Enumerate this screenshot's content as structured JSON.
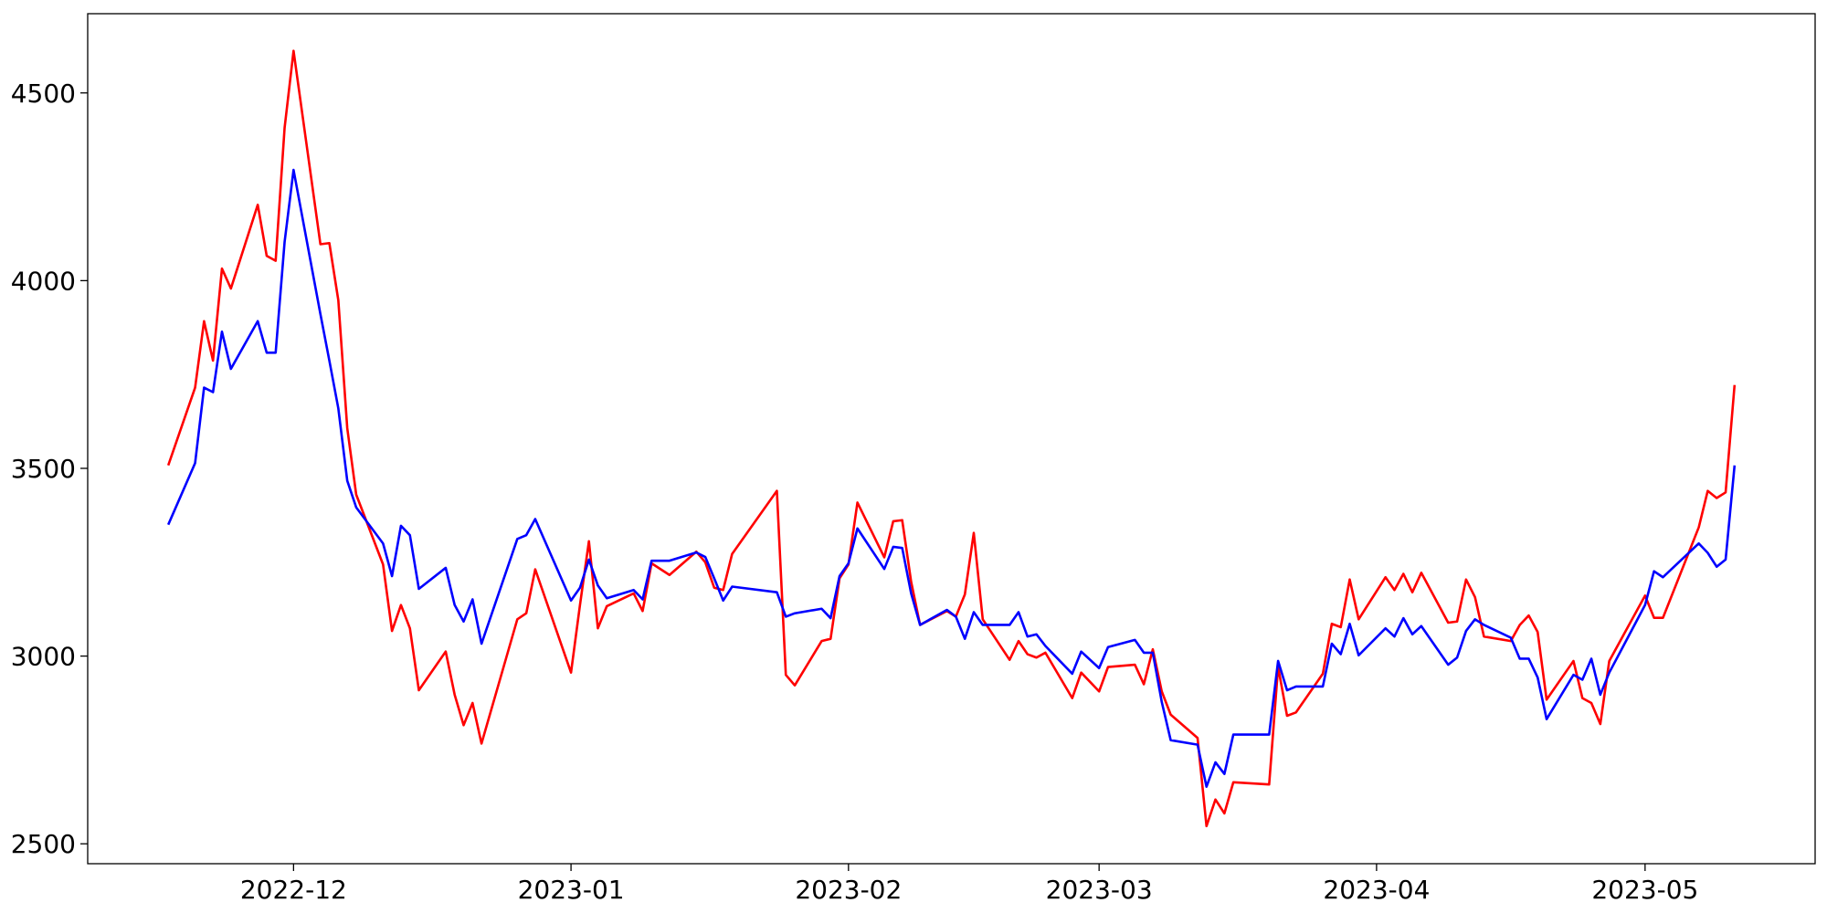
{
  "chart_data": {
    "type": "line",
    "x": [
      "2022-11-17",
      "2022-11-20",
      "2022-11-21",
      "2022-11-22",
      "2022-11-23",
      "2022-11-24",
      "2022-11-27",
      "2022-11-28",
      "2022-11-29",
      "2022-11-30",
      "2022-12-01",
      "2022-12-04",
      "2022-12-05",
      "2022-12-06",
      "2022-12-07",
      "2022-12-08",
      "2022-12-11",
      "2022-12-12",
      "2022-12-13",
      "2022-12-14",
      "2022-12-15",
      "2022-12-18",
      "2022-12-19",
      "2022-12-20",
      "2022-12-21",
      "2022-12-22",
      "2022-12-26",
      "2022-12-27",
      "2022-12-28",
      "2023-01-01",
      "2023-01-02",
      "2023-01-03",
      "2023-01-04",
      "2023-01-05",
      "2023-01-08",
      "2023-01-09",
      "2023-01-10",
      "2023-01-12",
      "2023-01-15",
      "2023-01-16",
      "2023-01-17",
      "2023-01-18",
      "2023-01-19",
      "2023-01-24",
      "2023-01-25",
      "2023-01-26",
      "2023-01-29",
      "2023-01-30",
      "2023-01-31",
      "2023-02-01",
      "2023-02-02",
      "2023-02-05",
      "2023-02-06",
      "2023-02-07",
      "2023-02-08",
      "2023-02-09",
      "2023-02-12",
      "2023-02-13",
      "2023-02-14",
      "2023-02-15",
      "2023-02-16",
      "2023-02-19",
      "2023-02-20",
      "2023-02-21",
      "2023-02-22",
      "2023-02-23",
      "2023-02-26",
      "2023-02-27",
      "2023-03-01",
      "2023-03-02",
      "2023-03-05",
      "2023-03-06",
      "2023-03-07",
      "2023-03-08",
      "2023-03-09",
      "2023-03-12",
      "2023-03-13",
      "2023-03-14",
      "2023-03-15",
      "2023-03-16",
      "2023-03-20",
      "2023-03-21",
      "2023-03-22",
      "2023-03-23",
      "2023-03-26",
      "2023-03-27",
      "2023-03-28",
      "2023-03-29",
      "2023-03-30",
      "2023-04-02",
      "2023-04-03",
      "2023-04-04",
      "2023-04-05",
      "2023-04-06",
      "2023-04-09",
      "2023-04-10",
      "2023-04-11",
      "2023-04-12",
      "2023-04-13",
      "2023-04-16",
      "2023-04-17",
      "2023-04-18",
      "2023-04-19",
      "2023-04-20",
      "2023-04-23",
      "2023-04-24",
      "2023-04-25",
      "2023-04-26",
      "2023-04-27",
      "2023-05-01",
      "2023-05-02",
      "2023-05-03",
      "2023-05-07",
      "2023-05-08",
      "2023-05-09",
      "2023-05-10",
      "2023-05-11"
    ],
    "series": [
      {
        "color": "#ff0000",
        "values": [
          3508,
          3715,
          3892,
          3787,
          4032,
          3979,
          4202,
          4066,
          4053,
          4407,
          4612,
          4097,
          4100,
          3948,
          3607,
          3430,
          3244,
          3067,
          3136,
          3074,
          2909,
          3012,
          2897,
          2816,
          2875,
          2767,
          3098,
          3114,
          3231,
          2956,
          3136,
          3306,
          3074,
          3133,
          3167,
          3120,
          3247,
          3216,
          3278,
          3250,
          3182,
          3176,
          3272,
          3440,
          2950,
          2922,
          3040,
          3046,
          3207,
          3244,
          3409,
          3263,
          3359,
          3362,
          3198,
          3083,
          3120,
          3105,
          3164,
          3328,
          3098,
          2990,
          3040,
          3005,
          2996,
          3009,
          2888,
          2956,
          2906,
          2971,
          2977,
          2925,
          3018,
          2906,
          2844,
          2782,
          2547,
          2618,
          2581,
          2664,
          2658,
          2971,
          2841,
          2850,
          2953,
          3086,
          3077,
          3204,
          3098,
          3210,
          3176,
          3219,
          3170,
          3222,
          3089,
          3092,
          3204,
          3157,
          3052,
          3040,
          3083,
          3108,
          3064,
          2884,
          2987,
          2888,
          2875,
          2819,
          2987,
          3161,
          3102,
          3102,
          3343,
          3440,
          3421,
          3436,
          3722
        ]
      },
      {
        "color": "#0000ff",
        "values": [
          3350,
          3514,
          3715,
          3703,
          3864,
          3765,
          3892,
          3808,
          3808,
          4103,
          4295,
          3911,
          3787,
          3660,
          3467,
          3396,
          3300,
          3213,
          3347,
          3322,
          3179,
          3235,
          3136,
          3092,
          3151,
          3033,
          3312,
          3322,
          3365,
          3148,
          3182,
          3257,
          3188,
          3154,
          3176,
          3151,
          3254,
          3254,
          3276,
          3264,
          3207,
          3148,
          3185,
          3170,
          3105,
          3114,
          3126,
          3101,
          3213,
          3247,
          3340,
          3232,
          3291,
          3288,
          3167,
          3083,
          3123,
          3105,
          3046,
          3117,
          3083,
          3083,
          3117,
          3052,
          3058,
          3027,
          2953,
          3012,
          2968,
          3024,
          3043,
          3009,
          3009,
          2878,
          2776,
          2764,
          2652,
          2717,
          2686,
          2791,
          2791,
          2987,
          2909,
          2919,
          2919,
          3033,
          3005,
          3086,
          3002,
          3074,
          3052,
          3101,
          3058,
          3080,
          2977,
          2996,
          3067,
          3098,
          3083,
          3049,
          2993,
          2993,
          2943,
          2832,
          2950,
          2937,
          2993,
          2897,
          2956,
          3136,
          3226,
          3210,
          3300,
          3275,
          3238,
          3257,
          3508
        ]
      }
    ],
    "xlim": [
      "2022-11-08",
      "2023-05-20"
    ],
    "ylim": [
      2447,
      4711
    ],
    "xticks": [
      {
        "value": "2022-12-01",
        "label": "2022-12"
      },
      {
        "value": "2023-01-01",
        "label": "2023-01"
      },
      {
        "value": "2023-02-01",
        "label": "2023-02"
      },
      {
        "value": "2023-03-01",
        "label": "2023-03"
      },
      {
        "value": "2023-04-01",
        "label": "2023-04"
      },
      {
        "value": "2023-05-01",
        "label": "2023-05"
      }
    ],
    "yticks": [
      2500,
      3000,
      3500,
      4000,
      4500
    ],
    "grid": false
  }
}
